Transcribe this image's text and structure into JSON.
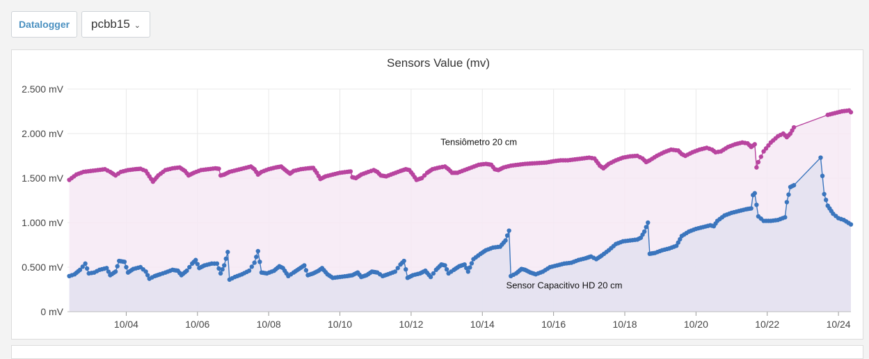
{
  "toolbar": {
    "datalogger_label": "Datalogger",
    "device_select_value": "pcbb15"
  },
  "colors": {
    "tensiometro": "#b8449f",
    "capacitivo": "#3a75bd",
    "tensiometro_fill": "#f6e9f4",
    "capacitivo_fill": "#e3e2f1",
    "grid": "#e8e8e8"
  },
  "chart_data": {
    "type": "area",
    "title": "Sensors Value (mv)",
    "xlabel": "",
    "ylabel": "",
    "x_unit": "day of October",
    "xlim": [
      2.35,
      24.35
    ],
    "ylim": [
      0,
      2500
    ],
    "y_ticks": [
      0,
      500,
      1000,
      1500,
      2000,
      2500
    ],
    "y_tick_labels": [
      "0 mV",
      "0.500 mV",
      "1.000 mV",
      "1.500 mV",
      "2.000 mV",
      "2.500 mV"
    ],
    "x_ticks": [
      4,
      6,
      8,
      10,
      12,
      14,
      16,
      18,
      20,
      22,
      24
    ],
    "x_tick_labels": [
      "10/04",
      "10/06",
      "10/08",
      "10/10",
      "10/12",
      "10/14",
      "10/16",
      "10/18",
      "10/20",
      "10/22",
      "10/24"
    ],
    "grid": true,
    "legend": "none",
    "series": [
      {
        "name": "Tensiômetro  20 cm",
        "label_at": [
          13.9,
          1870
        ],
        "points": [
          [
            2.4,
            1480
          ],
          [
            2.6,
            1540
          ],
          [
            2.8,
            1570
          ],
          [
            3.0,
            1580
          ],
          [
            3.2,
            1590
          ],
          [
            3.4,
            1600
          ],
          [
            3.55,
            1570
          ],
          [
            3.7,
            1530
          ],
          [
            3.85,
            1570
          ],
          [
            4.05,
            1590
          ],
          [
            4.25,
            1600
          ],
          [
            4.4,
            1605
          ],
          [
            4.55,
            1580
          ],
          [
            4.65,
            1520
          ],
          [
            4.75,
            1460
          ],
          [
            4.9,
            1530
          ],
          [
            5.1,
            1590
          ],
          [
            5.3,
            1610
          ],
          [
            5.5,
            1620
          ],
          [
            5.65,
            1580
          ],
          [
            5.75,
            1530
          ],
          [
            5.9,
            1560
          ],
          [
            6.1,
            1590
          ],
          [
            6.3,
            1600
          ],
          [
            6.5,
            1610
          ],
          [
            6.6,
            1605
          ],
          [
            6.65,
            1530
          ],
          [
            6.75,
            1540
          ],
          [
            6.9,
            1570
          ],
          [
            7.1,
            1590
          ],
          [
            7.3,
            1610
          ],
          [
            7.5,
            1630
          ],
          [
            7.6,
            1600
          ],
          [
            7.7,
            1540
          ],
          [
            7.8,
            1570
          ],
          [
            8.0,
            1600
          ],
          [
            8.2,
            1620
          ],
          [
            8.35,
            1630
          ],
          [
            8.5,
            1580
          ],
          [
            8.6,
            1550
          ],
          [
            8.7,
            1580
          ],
          [
            8.9,
            1600
          ],
          [
            9.1,
            1610
          ],
          [
            9.25,
            1615
          ],
          [
            9.35,
            1560
          ],
          [
            9.45,
            1490
          ],
          [
            9.6,
            1520
          ],
          [
            9.8,
            1540
          ],
          [
            10.0,
            1560
          ],
          [
            10.2,
            1570
          ],
          [
            10.3,
            1575
          ],
          [
            10.35,
            1510
          ],
          [
            10.45,
            1500
          ],
          [
            10.6,
            1540
          ],
          [
            10.8,
            1570
          ],
          [
            10.95,
            1590
          ],
          [
            11.05,
            1570
          ],
          [
            11.15,
            1530
          ],
          [
            11.3,
            1520
          ],
          [
            11.5,
            1550
          ],
          [
            11.7,
            1580
          ],
          [
            11.85,
            1600
          ],
          [
            11.95,
            1590
          ],
          [
            12.05,
            1540
          ],
          [
            12.15,
            1480
          ],
          [
            12.3,
            1500
          ],
          [
            12.45,
            1560
          ],
          [
            12.6,
            1600
          ],
          [
            12.8,
            1620
          ],
          [
            12.95,
            1630
          ],
          [
            13.05,
            1600
          ],
          [
            13.15,
            1560
          ],
          [
            13.3,
            1560
          ],
          [
            13.5,
            1590
          ],
          [
            13.7,
            1620
          ],
          [
            13.9,
            1650
          ],
          [
            14.1,
            1660
          ],
          [
            14.25,
            1650
          ],
          [
            14.35,
            1600
          ],
          [
            14.45,
            1590
          ],
          [
            14.6,
            1620
          ],
          [
            14.8,
            1640
          ],
          [
            15.0,
            1650
          ],
          [
            15.2,
            1660
          ],
          [
            15.4,
            1665
          ],
          [
            15.6,
            1670
          ],
          [
            15.8,
            1675
          ],
          [
            16.0,
            1690
          ],
          [
            16.2,
            1700
          ],
          [
            16.4,
            1700
          ],
          [
            16.6,
            1710
          ],
          [
            16.8,
            1720
          ],
          [
            17.0,
            1730
          ],
          [
            17.15,
            1720
          ],
          [
            17.3,
            1640
          ],
          [
            17.4,
            1610
          ],
          [
            17.55,
            1660
          ],
          [
            17.75,
            1700
          ],
          [
            17.95,
            1730
          ],
          [
            18.15,
            1745
          ],
          [
            18.35,
            1750
          ],
          [
            18.5,
            1720
          ],
          [
            18.6,
            1680
          ],
          [
            18.7,
            1700
          ],
          [
            18.9,
            1750
          ],
          [
            19.1,
            1790
          ],
          [
            19.3,
            1820
          ],
          [
            19.5,
            1810
          ],
          [
            19.6,
            1770
          ],
          [
            19.7,
            1750
          ],
          [
            19.9,
            1790
          ],
          [
            20.1,
            1820
          ],
          [
            20.3,
            1840
          ],
          [
            20.45,
            1820
          ],
          [
            20.55,
            1790
          ],
          [
            20.7,
            1800
          ],
          [
            20.9,
            1850
          ],
          [
            21.1,
            1880
          ],
          [
            21.3,
            1900
          ],
          [
            21.45,
            1890
          ],
          [
            21.55,
            1850
          ],
          [
            21.65,
            1880
          ],
          [
            21.7,
            1620
          ],
          [
            21.75,
            1680
          ],
          [
            21.9,
            1800
          ],
          [
            22.1,
            1900
          ],
          [
            22.3,
            1970
          ],
          [
            22.45,
            2000
          ],
          [
            22.55,
            1960
          ],
          [
            22.65,
            2000
          ],
          [
            22.75,
            2070
          ],
          [
            23.7,
            2210
          ],
          [
            23.9,
            2230
          ],
          [
            24.1,
            2250
          ],
          [
            24.3,
            2260
          ],
          [
            24.35,
            2240
          ]
        ]
      },
      {
        "name": "Sensor Capacitivo HD 20 cm",
        "label_at": [
          16.3,
          260
        ],
        "points": [
          [
            2.4,
            400
          ],
          [
            2.55,
            420
          ],
          [
            2.7,
            470
          ],
          [
            2.85,
            540
          ],
          [
            2.95,
            430
          ],
          [
            3.1,
            440
          ],
          [
            3.25,
            470
          ],
          [
            3.45,
            490
          ],
          [
            3.55,
            410
          ],
          [
            3.7,
            450
          ],
          [
            3.8,
            570
          ],
          [
            3.95,
            560
          ],
          [
            4.05,
            440
          ],
          [
            4.2,
            480
          ],
          [
            4.4,
            500
          ],
          [
            4.55,
            450
          ],
          [
            4.65,
            370
          ],
          [
            4.8,
            400
          ],
          [
            4.95,
            420
          ],
          [
            5.1,
            440
          ],
          [
            5.3,
            470
          ],
          [
            5.45,
            460
          ],
          [
            5.55,
            410
          ],
          [
            5.7,
            460
          ],
          [
            5.85,
            540
          ],
          [
            5.95,
            580
          ],
          [
            6.05,
            490
          ],
          [
            6.2,
            520
          ],
          [
            6.4,
            540
          ],
          [
            6.55,
            540
          ],
          [
            6.65,
            430
          ],
          [
            6.75,
            520
          ],
          [
            6.85,
            670
          ],
          [
            6.9,
            360
          ],
          [
            7.05,
            390
          ],
          [
            7.25,
            420
          ],
          [
            7.45,
            460
          ],
          [
            7.6,
            550
          ],
          [
            7.7,
            680
          ],
          [
            7.8,
            440
          ],
          [
            7.95,
            430
          ],
          [
            8.15,
            460
          ],
          [
            8.3,
            510
          ],
          [
            8.4,
            490
          ],
          [
            8.55,
            400
          ],
          [
            8.7,
            440
          ],
          [
            8.85,
            480
          ],
          [
            9.0,
            520
          ],
          [
            9.1,
            410
          ],
          [
            9.25,
            430
          ],
          [
            9.4,
            460
          ],
          [
            9.5,
            490
          ],
          [
            9.65,
            420
          ],
          [
            9.8,
            380
          ],
          [
            10.0,
            390
          ],
          [
            10.2,
            400
          ],
          [
            10.35,
            410
          ],
          [
            10.5,
            440
          ],
          [
            10.6,
            390
          ],
          [
            10.75,
            410
          ],
          [
            10.9,
            450
          ],
          [
            11.05,
            440
          ],
          [
            11.2,
            400
          ],
          [
            11.35,
            420
          ],
          [
            11.55,
            450
          ],
          [
            11.7,
            530
          ],
          [
            11.8,
            570
          ],
          [
            11.9,
            380
          ],
          [
            12.05,
            410
          ],
          [
            12.25,
            430
          ],
          [
            12.4,
            460
          ],
          [
            12.55,
            390
          ],
          [
            12.7,
            470
          ],
          [
            12.85,
            530
          ],
          [
            12.95,
            520
          ],
          [
            13.05,
            430
          ],
          [
            13.2,
            470
          ],
          [
            13.35,
            510
          ],
          [
            13.5,
            530
          ],
          [
            13.6,
            450
          ],
          [
            13.75,
            590
          ],
          [
            13.95,
            650
          ],
          [
            14.1,
            690
          ],
          [
            14.3,
            720
          ],
          [
            14.5,
            730
          ],
          [
            14.65,
            800
          ],
          [
            14.75,
            910
          ],
          [
            14.8,
            400
          ],
          [
            14.95,
            430
          ],
          [
            15.1,
            480
          ],
          [
            15.2,
            470
          ],
          [
            15.35,
            440
          ],
          [
            15.5,
            420
          ],
          [
            15.7,
            450
          ],
          [
            15.9,
            500
          ],
          [
            16.1,
            520
          ],
          [
            16.3,
            540
          ],
          [
            16.5,
            550
          ],
          [
            16.7,
            580
          ],
          [
            16.9,
            600
          ],
          [
            17.05,
            620
          ],
          [
            17.2,
            590
          ],
          [
            17.35,
            630
          ],
          [
            17.55,
            690
          ],
          [
            17.75,
            760
          ],
          [
            17.95,
            790
          ],
          [
            18.15,
            800
          ],
          [
            18.35,
            810
          ],
          [
            18.45,
            830
          ],
          [
            18.55,
            900
          ],
          [
            18.65,
            1000
          ],
          [
            18.7,
            650
          ],
          [
            18.85,
            660
          ],
          [
            19.05,
            690
          ],
          [
            19.25,
            710
          ],
          [
            19.45,
            740
          ],
          [
            19.6,
            850
          ],
          [
            19.8,
            900
          ],
          [
            20.0,
            930
          ],
          [
            20.2,
            950
          ],
          [
            20.4,
            970
          ],
          [
            20.5,
            960
          ],
          [
            20.6,
            1020
          ],
          [
            20.8,
            1080
          ],
          [
            21.0,
            1110
          ],
          [
            21.2,
            1130
          ],
          [
            21.4,
            1150
          ],
          [
            21.55,
            1160
          ],
          [
            21.6,
            1310
          ],
          [
            21.65,
            1330
          ],
          [
            21.75,
            1070
          ],
          [
            21.9,
            1020
          ],
          [
            22.1,
            1020
          ],
          [
            22.3,
            1030
          ],
          [
            22.5,
            1060
          ],
          [
            22.55,
            1230
          ],
          [
            22.65,
            1400
          ],
          [
            22.75,
            1420
          ],
          [
            23.5,
            1730
          ],
          [
            23.6,
            1320
          ],
          [
            23.7,
            1190
          ],
          [
            23.85,
            1100
          ],
          [
            24.0,
            1050
          ],
          [
            24.15,
            1030
          ],
          [
            24.35,
            980
          ]
        ]
      }
    ]
  }
}
